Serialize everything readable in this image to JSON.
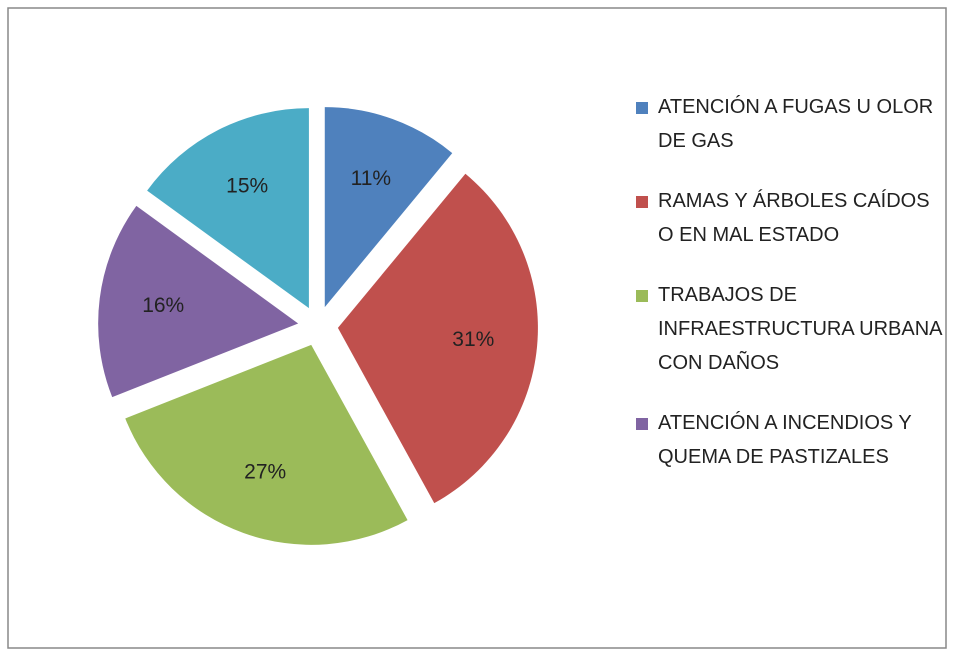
{
  "chart_data": {
    "type": "pie",
    "categories": [
      "ATENCIÓN A FUGAS U OLOR  DE GAS",
      "RAMAS Y ÁRBOLES CAÍDOS O EN MAL ESTADO",
      "TRABAJOS DE INFRAESTRUCTURA URBANA CON DAÑOS",
      "ATENCIÓN A INCENDIOS Y QUEMA DE PASTIZALES",
      null
    ],
    "values": [
      11,
      31,
      27,
      16,
      15
    ],
    "value_labels": [
      "11%",
      "31%",
      "27%",
      "16%",
      "15%"
    ],
    "colors": [
      "#4f81bd",
      "#c0504d",
      "#9bbb59",
      "#8064a2",
      "#4bacc6"
    ],
    "legend": "right"
  }
}
